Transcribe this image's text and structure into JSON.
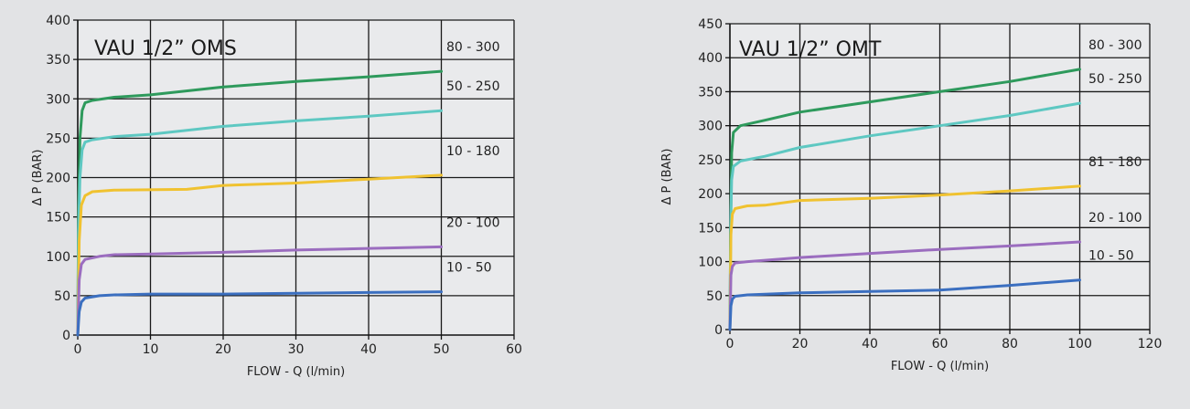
{
  "chart_data": [
    {
      "type": "line",
      "title": "VAU 1/2” OMS",
      "xlabel": "FLOW - Q (l/min)",
      "ylabel": "Δ P (BAR)",
      "xlim": [
        0,
        60
      ],
      "ylim": [
        0,
        400
      ],
      "xticks": [
        0,
        10,
        20,
        30,
        40,
        50,
        60
      ],
      "yticks": [
        0,
        50,
        100,
        150,
        200,
        250,
        300,
        350,
        400
      ],
      "grid": true,
      "x_plot_max": 50,
      "series": [
        {
          "name": "80 - 300",
          "color": "#2e9a5c",
          "points": [
            [
              0,
              0
            ],
            [
              0.1,
              150
            ],
            [
              0.3,
              250
            ],
            [
              0.6,
              285
            ],
            [
              1,
              295
            ],
            [
              2,
              298
            ],
            [
              5,
              302
            ],
            [
              10,
              305
            ],
            [
              20,
              315
            ],
            [
              30,
              322
            ],
            [
              40,
              328
            ],
            [
              50,
              335
            ]
          ]
        },
        {
          "name": "50 - 250",
          "color": "#5ec8c2",
          "points": [
            [
              0,
              0
            ],
            [
              0.1,
              130
            ],
            [
              0.3,
              200
            ],
            [
              0.6,
              235
            ],
            [
              1,
              245
            ],
            [
              2,
              248
            ],
            [
              5,
              252
            ],
            [
              10,
              255
            ],
            [
              20,
              265
            ],
            [
              30,
              272
            ],
            [
              40,
              278
            ],
            [
              50,
              285
            ]
          ]
        },
        {
          "name": "10 - 180",
          "color": "#f0c230",
          "points": [
            [
              0,
              0
            ],
            [
              0.2,
              120
            ],
            [
              0.5,
              165
            ],
            [
              1,
              177
            ],
            [
              2,
              182
            ],
            [
              5,
              184
            ],
            [
              15,
              185
            ],
            [
              20,
              190
            ],
            [
              30,
              193
            ],
            [
              40,
              198
            ],
            [
              50,
              203
            ]
          ]
        },
        {
          "name": "20 - 100",
          "color": "#9b6dbf",
          "points": [
            [
              0,
              0
            ],
            [
              0.2,
              70
            ],
            [
              0.5,
              90
            ],
            [
              1,
              96
            ],
            [
              3,
              100
            ],
            [
              5,
              102
            ],
            [
              10,
              103
            ],
            [
              20,
              105
            ],
            [
              30,
              108
            ],
            [
              40,
              110
            ],
            [
              50,
              112
            ]
          ]
        },
        {
          "name": "10 - 50",
          "color": "#3b6fc0",
          "points": [
            [
              0,
              0
            ],
            [
              0.2,
              30
            ],
            [
              0.5,
              42
            ],
            [
              1,
              47
            ],
            [
              3,
              50
            ],
            [
              5,
              51
            ],
            [
              10,
              52
            ],
            [
              20,
              52
            ],
            [
              30,
              53
            ],
            [
              40,
              54
            ],
            [
              50,
              55
            ]
          ]
        }
      ]
    },
    {
      "type": "line",
      "title": "VAU 1/2” OMT",
      "xlabel": "FLOW - Q (l/min)",
      "ylabel": "Δ P (BAR)",
      "xlim": [
        0,
        120
      ],
      "ylim": [
        0,
        450
      ],
      "xticks": [
        0,
        20,
        40,
        60,
        80,
        100,
        120
      ],
      "yticks": [
        0,
        50,
        100,
        150,
        200,
        250,
        300,
        350,
        400,
        450
      ],
      "grid": true,
      "x_plot_max": 100,
      "series": [
        {
          "name": "80 - 300",
          "color": "#2e9a5c",
          "points": [
            [
              0,
              0
            ],
            [
              0.2,
              150
            ],
            [
              0.5,
              260
            ],
            [
              1,
              290
            ],
            [
              3,
              300
            ],
            [
              10,
              308
            ],
            [
              20,
              320
            ],
            [
              40,
              335
            ],
            [
              60,
              350
            ],
            [
              80,
              365
            ],
            [
              100,
              383
            ]
          ]
        },
        {
          "name": "50 - 250",
          "color": "#5ec8c2",
          "points": [
            [
              0,
              0
            ],
            [
              0.2,
              150
            ],
            [
              0.5,
              220
            ],
            [
              1,
              240
            ],
            [
              3,
              248
            ],
            [
              10,
              255
            ],
            [
              20,
              268
            ],
            [
              40,
              285
            ],
            [
              60,
              300
            ],
            [
              80,
              315
            ],
            [
              100,
              333
            ]
          ]
        },
        {
          "name": "81 - 180",
          "color": "#f0c230",
          "points": [
            [
              0,
              0
            ],
            [
              0.3,
              140
            ],
            [
              0.7,
              170
            ],
            [
              1.5,
              178
            ],
            [
              5,
              182
            ],
            [
              10,
              183
            ],
            [
              20,
              190
            ],
            [
              40,
              193
            ],
            [
              60,
              198
            ],
            [
              80,
              204
            ],
            [
              100,
              211
            ]
          ]
        },
        {
          "name": "20 - 100",
          "color": "#9b6dbf",
          "points": [
            [
              0,
              0
            ],
            [
              0.3,
              80
            ],
            [
              0.7,
              93
            ],
            [
              1.5,
              98
            ],
            [
              5,
              100
            ],
            [
              10,
              102
            ],
            [
              20,
              106
            ],
            [
              40,
              112
            ],
            [
              60,
              118
            ],
            [
              80,
              123
            ],
            [
              100,
              129
            ]
          ]
        },
        {
          "name": "10 - 50",
          "color": "#3b6fc0",
          "points": [
            [
              0,
              0
            ],
            [
              0.3,
              35
            ],
            [
              0.7,
              45
            ],
            [
              1.5,
              49
            ],
            [
              5,
              51
            ],
            [
              10,
              52
            ],
            [
              20,
              54
            ],
            [
              40,
              56
            ],
            [
              60,
              58
            ],
            [
              80,
              65
            ],
            [
              100,
              73
            ]
          ]
        }
      ]
    }
  ]
}
